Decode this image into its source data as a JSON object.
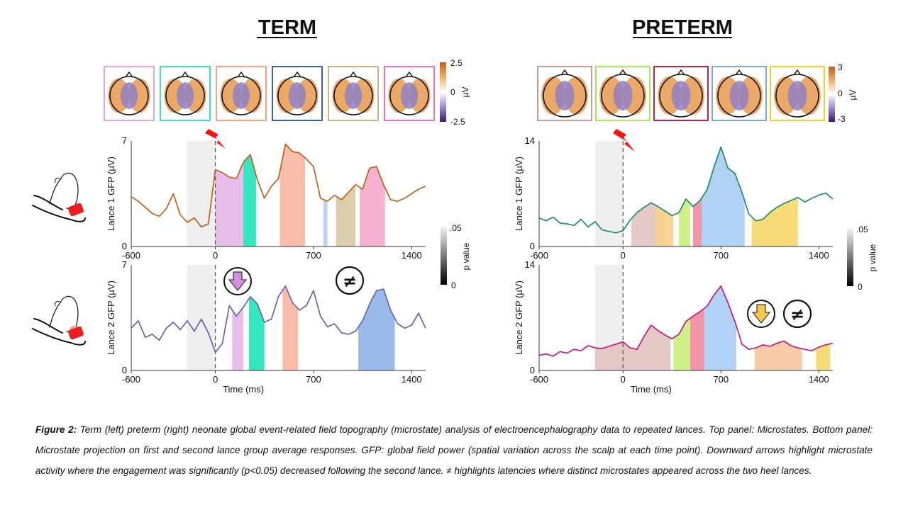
{
  "chart_data": [
    {
      "type": "line",
      "panel": "term-lance-1",
      "ylabel": "Lance 1 GFP (µV)",
      "xlim": [
        -600,
        1500
      ],
      "ylim": [
        0,
        7
      ],
      "yticks": [
        "0",
        "7"
      ],
      "xticks": [
        "-600",
        "0",
        "700",
        "1400"
      ],
      "line_color": "#c0601a",
      "stimulus_ms": 0,
      "baseline_window_ms": [
        -200,
        0
      ],
      "series": [
        {
          "x": [
            -600,
            -550,
            -500,
            -450,
            -400,
            -350,
            -300,
            -250,
            -200,
            -150,
            -100,
            -50,
            0,
            50,
            100,
            150,
            200,
            250,
            300,
            350,
            400,
            450,
            500,
            550,
            600,
            650,
            700,
            750,
            800,
            850,
            900,
            950,
            1000,
            1050,
            1100,
            1150,
            1200,
            1250,
            1300,
            1350,
            1400,
            1450,
            1500
          ],
          "values": [
            3.3,
            3.0,
            2.6,
            2.2,
            2.0,
            2.5,
            3.5,
            2.1,
            1.6,
            1.9,
            1.3,
            1.5,
            5.1,
            4.9,
            4.6,
            4.5,
            5.6,
            6.1,
            4.4,
            3.2,
            4.0,
            4.5,
            6.8,
            6.3,
            6.2,
            5.8,
            5.3,
            3.2,
            3.0,
            3.4,
            3.1,
            3.6,
            4.1,
            3.8,
            5.2,
            5.3,
            4.1,
            3.1,
            3.0,
            3.2,
            3.5,
            3.8,
            4.0
          ]
        }
      ],
      "microstate_windows": [
        {
          "from": 0,
          "to": 200,
          "color": "#e7b6e8"
        },
        {
          "from": 200,
          "to": 290,
          "color": "#1fe3b8"
        },
        {
          "from": 460,
          "to": 640,
          "color": "#f7b59e"
        },
        {
          "from": 770,
          "to": 800,
          "color": "#b8cfee"
        },
        {
          "from": 860,
          "to": 1000,
          "color": "#d6c9a2"
        },
        {
          "from": 1030,
          "to": 1210,
          "color": "#f5a9cc"
        }
      ]
    },
    {
      "type": "line",
      "panel": "term-lance-2",
      "ylabel": "Lance 2 GFP (µV)",
      "xlabel": "Time (ms)",
      "xlim": [
        -600,
        1500
      ],
      "ylim": [
        0,
        7
      ],
      "yticks": [
        "0",
        "7"
      ],
      "xticks": [
        "-600",
        "0",
        "700",
        "1400"
      ],
      "line_color": "#6a62a9",
      "stimulus_ms": 0,
      "baseline_window_ms": [
        -200,
        0
      ],
      "series": [
        {
          "x": [
            -600,
            -550,
            -500,
            -450,
            -400,
            -350,
            -300,
            -250,
            -200,
            -150,
            -100,
            -50,
            0,
            50,
            100,
            150,
            200,
            250,
            300,
            350,
            400,
            450,
            500,
            550,
            600,
            650,
            700,
            750,
            800,
            850,
            900,
            950,
            1000,
            1050,
            1100,
            1150,
            1200,
            1250,
            1300,
            1350,
            1400,
            1450,
            1500
          ],
          "values": [
            2.8,
            3.3,
            2.2,
            2.4,
            2.0,
            2.8,
            3.2,
            2.7,
            3.3,
            2.6,
            3.4,
            2.5,
            1.2,
            1.8,
            4.3,
            3.6,
            4.2,
            4.9,
            4.4,
            3.2,
            3.4,
            4.9,
            5.6,
            4.5,
            4.0,
            4.3,
            5.3,
            3.6,
            2.9,
            3.1,
            2.5,
            2.4,
            2.6,
            3.3,
            4.4,
            5.3,
            5.4,
            4.0,
            3.1,
            2.8,
            3.0,
            3.8,
            2.8
          ]
        }
      ],
      "microstate_windows": [
        {
          "from": 120,
          "to": 200,
          "color": "#e7b6e8"
        },
        {
          "from": 240,
          "to": 350,
          "color": "#1fe3b8"
        },
        {
          "from": 480,
          "to": 590,
          "color": "#f7b59e"
        },
        {
          "from": 1020,
          "to": 1280,
          "color": "#8fb4e8"
        }
      ]
    },
    {
      "type": "line",
      "panel": "preterm-lance-1",
      "ylabel": "Lance 1 GFP (µV)",
      "xlim": [
        -600,
        1500
      ],
      "ylim": [
        0,
        14
      ],
      "yticks": [
        "0",
        "14"
      ],
      "xticks": [
        "-600",
        "0",
        "700",
        "1400"
      ],
      "line_color": "#1e8c68",
      "stimulus_ms": 0,
      "baseline_window_ms": [
        -200,
        0
      ],
      "series": [
        {
          "x": [
            -600,
            -550,
            -500,
            -450,
            -400,
            -350,
            -300,
            -250,
            -200,
            -150,
            -100,
            -50,
            0,
            50,
            100,
            150,
            200,
            250,
            300,
            350,
            400,
            450,
            500,
            550,
            600,
            650,
            700,
            750,
            800,
            850,
            900,
            950,
            1000,
            1050,
            1100,
            1150,
            1200,
            1250,
            1300,
            1350,
            1400,
            1450,
            1500
          ],
          "values": [
            3.8,
            3.4,
            3.9,
            3.1,
            3.0,
            2.8,
            3.6,
            2.6,
            3.3,
            2.2,
            2.0,
            1.8,
            2.1,
            3.5,
            4.5,
            5.2,
            5.8,
            5.3,
            4.7,
            4.1,
            4.5,
            6.3,
            5.3,
            6.1,
            7.5,
            10.5,
            13.2,
            10.4,
            9.7,
            7.2,
            4.3,
            3.4,
            3.6,
            4.5,
            5.2,
            5.7,
            6.1,
            6.5,
            5.9,
            6.4,
            6.8,
            7.1,
            6.3
          ]
        }
      ],
      "microstate_windows": [
        {
          "from": 60,
          "to": 300,
          "color": "#e2c3c0"
        },
        {
          "from": 230,
          "to": 360,
          "color": "#f6d08c"
        },
        {
          "from": 400,
          "to": 480,
          "color": "#c8f07a"
        },
        {
          "from": 500,
          "to": 570,
          "color": "#f28aa0"
        },
        {
          "from": 560,
          "to": 870,
          "color": "#a9cdf3"
        },
        {
          "from": 920,
          "to": 1250,
          "color": "#f7d76a"
        }
      ]
    },
    {
      "type": "line",
      "panel": "preterm-lance-2",
      "ylabel": "Lance 2 GFP (µV)",
      "xlabel": "Time (ms)",
      "xlim": [
        -600,
        1500
      ],
      "ylim": [
        0,
        14
      ],
      "yticks": [
        "0",
        "14"
      ],
      "xticks": [
        "-600",
        "0",
        "700",
        "1400"
      ],
      "line_color": "#c2187a",
      "stimulus_ms": 0,
      "baseline_window_ms": [
        -200,
        0
      ],
      "series": [
        {
          "x": [
            -600,
            -550,
            -500,
            -450,
            -400,
            -350,
            -300,
            -250,
            -200,
            -150,
            -100,
            -50,
            0,
            50,
            100,
            150,
            200,
            250,
            300,
            350,
            400,
            450,
            500,
            550,
            600,
            650,
            700,
            750,
            800,
            850,
            900,
            950,
            1000,
            1050,
            1100,
            1150,
            1200,
            1250,
            1300,
            1350,
            1400,
            1450,
            1500
          ],
          "values": [
            2.0,
            2.2,
            1.9,
            2.5,
            2.3,
            2.8,
            2.6,
            3.3,
            3.0,
            2.9,
            3.2,
            3.5,
            3.8,
            3.0,
            2.8,
            4.5,
            6.0,
            5.3,
            4.7,
            4.2,
            4.8,
            6.5,
            7.2,
            7.8,
            8.5,
            10.0,
            11.2,
            9.0,
            6.5,
            3.5,
            2.8,
            3.0,
            3.4,
            3.2,
            3.6,
            3.9,
            3.3,
            3.0,
            2.8,
            2.6,
            3.1,
            3.4,
            3.6
          ]
        }
      ],
      "microstate_windows": [
        {
          "from": -200,
          "to": 340,
          "color": "#e2c3c0"
        },
        {
          "from": 360,
          "to": 480,
          "color": "#c8f07a"
        },
        {
          "from": 480,
          "to": 580,
          "color": "#f28aa0"
        },
        {
          "from": 580,
          "to": 810,
          "color": "#a9cdf3"
        },
        {
          "from": 940,
          "to": 1280,
          "color": "#f5c6a0"
        },
        {
          "from": 1380,
          "to": 1480,
          "color": "#f7d76a"
        }
      ]
    }
  ],
  "figure": {
    "term_title": "TERM",
    "preterm_title": "PRETERM",
    "term_colorbar": {
      "max_label": "2.5",
      "mid_label": "0",
      "min_label": "-2.5",
      "unit": "µV"
    },
    "preterm_colorbar": {
      "max_label": "3",
      "mid_label": "0",
      "min_label": "-3",
      "unit": "µV"
    },
    "pvalue_bar": {
      "top_label": ".05",
      "bottom_label": "0",
      "title": "p value"
    },
    "term_microstate_frames": [
      "#e3a3e1",
      "#3de3b2",
      "#f2a488",
      "#3a5fc4",
      "#c9b386",
      "#ef6fb8"
    ],
    "preterm_microstate_frames": [
      "#c79a9a",
      "#a5ea57",
      "#c0224a",
      "#7ea6e0",
      "#f1cf2b"
    ],
    "downward_arrow_colors": {
      "term": "#d38fe0",
      "preterm": "#f7c94a"
    },
    "distinct_symbol": "≠",
    "stimulus_icon_color": "#ff1010"
  },
  "caption": {
    "label": "Figure 2:",
    "text": "Term (left) preterm (right) neonate global event-related field topography (microstate) analysis of electroencephalography data to repeated lances. Top panel: Microstates. Bottom panel: Microstate projection on first and second lance group average responses. GFP: global field power (spatial variation across the scalp at each time point). Downward arrows highlight microstate activity where the engagement was significantly (p<0.05) decreased following the second lance. ≠ highlights latencies where distinct microstates appeared across the two heel lances."
  }
}
